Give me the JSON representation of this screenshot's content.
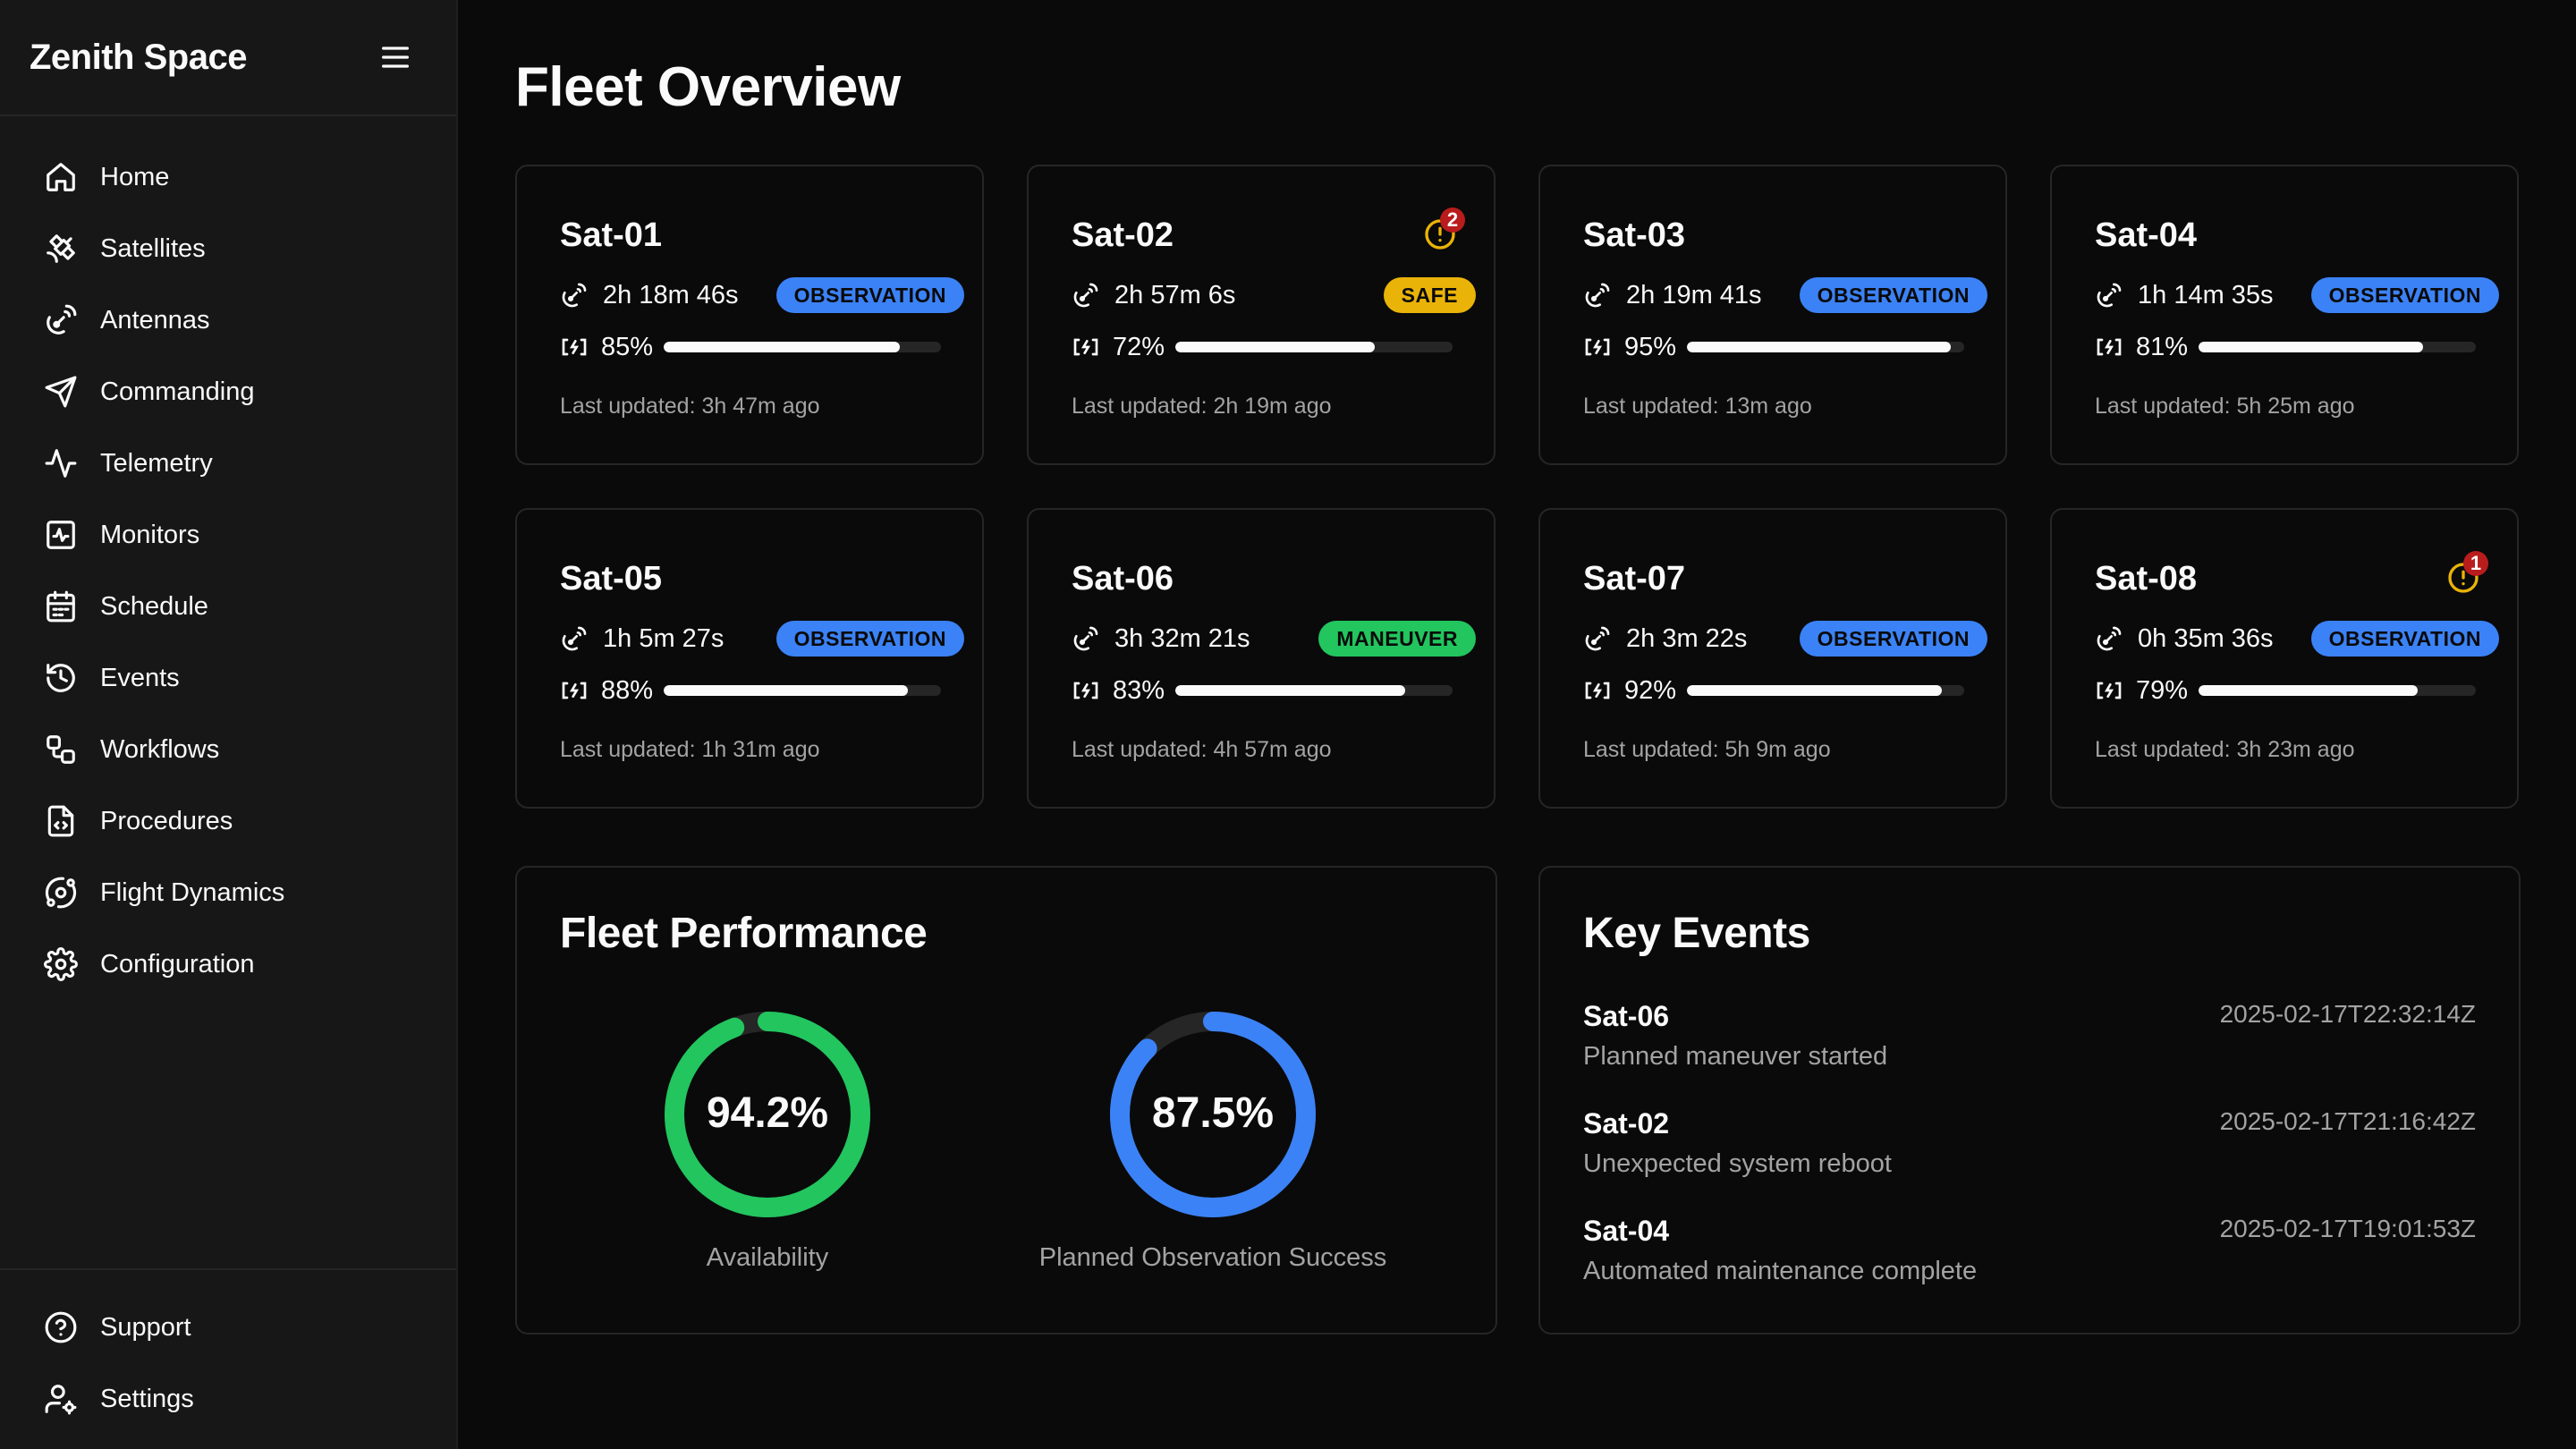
{
  "app": {
    "title": "Zenith Space"
  },
  "nav": {
    "items": [
      {
        "label": "Home",
        "icon": "home-icon"
      },
      {
        "label": "Satellites",
        "icon": "satellite-icon"
      },
      {
        "label": "Antennas",
        "icon": "antenna-icon"
      },
      {
        "label": "Commanding",
        "icon": "send-icon"
      },
      {
        "label": "Telemetry",
        "icon": "activity-icon"
      },
      {
        "label": "Monitors",
        "icon": "monitor-icon"
      },
      {
        "label": "Schedule",
        "icon": "calendar-icon"
      },
      {
        "label": "Events",
        "icon": "history-icon"
      },
      {
        "label": "Workflows",
        "icon": "workflow-icon"
      },
      {
        "label": "Procedures",
        "icon": "file-code-icon"
      },
      {
        "label": "Flight Dynamics",
        "icon": "orbit-icon"
      },
      {
        "label": "Configuration",
        "icon": "gear-icon"
      }
    ],
    "bottom": [
      {
        "label": "Support",
        "icon": "help-icon"
      },
      {
        "label": "Settings",
        "icon": "user-settings-icon"
      }
    ]
  },
  "page": {
    "title": "Fleet Overview"
  },
  "satellites": [
    {
      "name": "Sat-01",
      "pass": "2h 18m 46s",
      "mode": "OBSERVATION",
      "pct_label": "85%",
      "pct": 85,
      "updated": "Last updated: 3h 47m ago",
      "alerts": ""
    },
    {
      "name": "Sat-02",
      "pass": "2h 57m 6s",
      "mode": "SAFE",
      "pct_label": "72%",
      "pct": 72,
      "updated": "Last updated: 2h 19m ago",
      "alerts": "2"
    },
    {
      "name": "Sat-03",
      "pass": "2h 19m 41s",
      "mode": "OBSERVATION",
      "pct_label": "95%",
      "pct": 95,
      "updated": "Last updated: 13m ago",
      "alerts": ""
    },
    {
      "name": "Sat-04",
      "pass": "1h 14m 35s",
      "mode": "OBSERVATION",
      "pct_label": "81%",
      "pct": 81,
      "updated": "Last updated: 5h 25m ago",
      "alerts": ""
    },
    {
      "name": "Sat-05",
      "pass": "1h 5m 27s",
      "mode": "OBSERVATION",
      "pct_label": "88%",
      "pct": 88,
      "updated": "Last updated: 1h 31m ago",
      "alerts": ""
    },
    {
      "name": "Sat-06",
      "pass": "3h 32m 21s",
      "mode": "MANEUVER",
      "pct_label": "83%",
      "pct": 83,
      "updated": "Last updated: 4h 57m ago",
      "alerts": ""
    },
    {
      "name": "Sat-07",
      "pass": "2h 3m 22s",
      "mode": "OBSERVATION",
      "pct_label": "92%",
      "pct": 92,
      "updated": "Last updated: 5h 9m ago",
      "alerts": ""
    },
    {
      "name": "Sat-08",
      "pass": "0h 35m 36s",
      "mode": "OBSERVATION",
      "pct_label": "79%",
      "pct": 79,
      "updated": "Last updated: 3h 23m ago",
      "alerts": "1"
    }
  ],
  "mode_colors": {
    "OBSERVATION": {
      "bg": "#3b82f6",
      "fg": "#0a0a0a"
    },
    "SAFE": {
      "bg": "#eab308",
      "fg": "#0a0a0a"
    },
    "MANEUVER": {
      "bg": "#22c55e",
      "fg": "#0a0a0a"
    }
  },
  "performance": {
    "title": "Fleet Performance",
    "metrics": [
      {
        "value_label": "94.2%",
        "value": 94.2,
        "label": "Availability",
        "color": "#22c55e"
      },
      {
        "value_label": "87.5%",
        "value": 87.5,
        "label": "Planned Observation Success",
        "color": "#3b82f6"
      }
    ]
  },
  "events": {
    "title": "Key Events",
    "items": [
      {
        "sat": "Sat-06",
        "desc": "Planned maneuver started",
        "time": "2025-02-17T22:32:14Z"
      },
      {
        "sat": "Sat-02",
        "desc": "Unexpected system reboot",
        "time": "2025-02-17T21:16:42Z"
      },
      {
        "sat": "Sat-04",
        "desc": "Automated maintenance complete",
        "time": "2025-02-17T19:01:53Z"
      }
    ]
  }
}
